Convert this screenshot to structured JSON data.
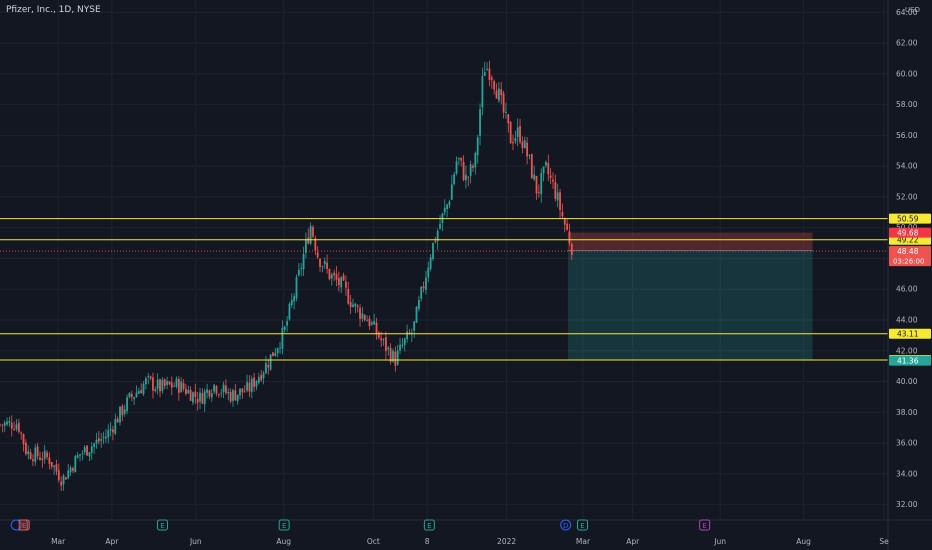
{
  "header": {
    "symbol_title": "Pfizer, Inc., 1D, NYSE",
    "currency": "USD"
  },
  "chart_data": {
    "type": "candlestick",
    "ylim": [
      31,
      64.8
    ],
    "y_ticks": [
      32,
      34,
      36,
      38,
      40,
      42,
      44,
      46,
      48,
      50,
      52,
      54,
      56,
      58,
      60,
      62,
      64
    ],
    "x_ticks": [
      {
        "label": "Mar",
        "t": 0.0655
      },
      {
        "label": "Apr",
        "t": 0.126
      },
      {
        "label": "Jun",
        "t": 0.2205
      },
      {
        "label": "Aug",
        "t": 0.3195
      },
      {
        "label": "Oct",
        "t": 0.4205
      },
      {
        "label": "8",
        "t": 0.481
      },
      {
        "label": "2022",
        "t": 0.5705
      },
      {
        "label": "Mar",
        "t": 0.6565
      },
      {
        "label": "Apr",
        "t": 0.7125
      },
      {
        "label": "Jun",
        "t": 0.811
      },
      {
        "label": "Aug",
        "t": 0.905
      },
      {
        "label": "Se",
        "t": 0.9955
      }
    ],
    "price_path": [
      [
        0.0,
        37.2
      ],
      [
        0.02,
        37.3
      ],
      [
        0.03,
        35.4
      ],
      [
        0.055,
        35.0
      ],
      [
        0.07,
        33.6
      ],
      [
        0.09,
        35.3
      ],
      [
        0.12,
        36.5
      ],
      [
        0.145,
        38.8
      ],
      [
        0.165,
        40.0
      ],
      [
        0.18,
        39.6
      ],
      [
        0.2,
        39.8
      ],
      [
        0.225,
        38.9
      ],
      [
        0.24,
        39.8
      ],
      [
        0.26,
        39.1
      ],
      [
        0.28,
        39.5
      ],
      [
        0.3,
        41.1
      ],
      [
        0.32,
        43.2
      ],
      [
        0.335,
        46.5
      ],
      [
        0.345,
        49.0
      ],
      [
        0.35,
        50.2
      ],
      [
        0.358,
        48.2
      ],
      [
        0.37,
        47.0
      ],
      [
        0.385,
        46.2
      ],
      [
        0.4,
        44.8
      ],
      [
        0.415,
        44.0
      ],
      [
        0.43,
        42.6
      ],
      [
        0.445,
        41.4
      ],
      [
        0.455,
        42.5
      ],
      [
        0.465,
        43.3
      ],
      [
        0.475,
        45.8
      ],
      [
        0.485,
        48.4
      ],
      [
        0.495,
        50.2
      ],
      [
        0.505,
        51.7
      ],
      [
        0.515,
        54.6
      ],
      [
        0.525,
        53.1
      ],
      [
        0.535,
        54.2
      ],
      [
        0.545,
        60.5
      ],
      [
        0.553,
        60.2
      ],
      [
        0.562,
        58.5
      ],
      [
        0.575,
        55.8
      ],
      [
        0.585,
        56.2
      ],
      [
        0.595,
        54.5
      ],
      [
        0.605,
        52.3
      ],
      [
        0.615,
        53.8
      ],
      [
        0.625,
        52.4
      ],
      [
        0.635,
        50.4
      ],
      [
        0.645,
        48.6
      ]
    ],
    "horizontal_levels": [
      {
        "value": 50.59,
        "label": "50.59",
        "label_bg": "#f7e832",
        "label_fg": "#131722"
      },
      {
        "value": 49.22,
        "label": "49.22",
        "label_bg": "#f7e832",
        "label_fg": "#131722"
      },
      {
        "value": 43.11,
        "label": "43.11",
        "label_bg": "#f7e832",
        "label_fg": "#131722"
      },
      {
        "value": 41.4,
        "label": "41.40",
        "label_bg": "#f7e832",
        "label_fg": "#131722"
      }
    ],
    "position": {
      "entry": 48.51,
      "stop": 49.68,
      "target": 41.36,
      "entry_label": "48.51",
      "stop_label": "49.68",
      "target_label": "41.36",
      "t_start": 0.6395,
      "t_end": 0.915
    },
    "last_price": {
      "value": 48.48,
      "label": "48.48",
      "countdown": "03:26:00"
    },
    "event_markers": [
      {
        "letter": "E",
        "t": 0.025,
        "style": "earnings-red"
      },
      {
        "letter": "E",
        "t": 0.183,
        "style": "earnings"
      },
      {
        "letter": "E",
        "t": 0.32,
        "style": "earnings"
      },
      {
        "letter": "E",
        "t": 0.4835,
        "style": "earnings"
      },
      {
        "letter": "D",
        "t": 0.637,
        "style": "dividend"
      },
      {
        "letter": "E",
        "t": 0.656,
        "style": "earnings"
      },
      {
        "letter": "E",
        "t": 0.7935,
        "style": "future"
      }
    ],
    "colors": {
      "background": "#131722",
      "grid": "#1f2330",
      "up": "#26a69a",
      "down": "#ef5350",
      "level": "#f7e832",
      "stop_zone": "#ef5350",
      "target_zone": "#26a69a",
      "axis_text": "#b2b5be",
      "last_price": "#ef5350",
      "target_label_bg": "#26a69a"
    }
  }
}
